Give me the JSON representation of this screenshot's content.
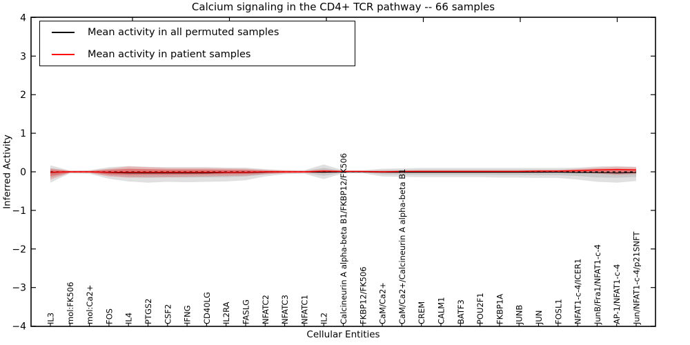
{
  "figure": {
    "title": "Calcium signaling in the CD4+ TCR pathway -- 66 samples",
    "xlabel": "Cellular Entities",
    "ylabel": "Inferred Activity"
  },
  "legend": {
    "entries": [
      {
        "label": "Mean activity in all permuted samples",
        "color": "#000000"
      },
      {
        "label": "Mean activity in patient samples",
        "color": "#ff0000"
      }
    ]
  },
  "chart_data": {
    "type": "line",
    "title": "Calcium signaling in the CD4+ TCR pathway -- 66 samples",
    "xlabel": "Cellular Entities",
    "ylabel": "Inferred Activity",
    "ylim": [
      -4,
      4
    ],
    "yticks": [
      "4",
      "3",
      "2",
      "1",
      "0",
      "−1",
      "−2",
      "−3",
      "−4"
    ],
    "ytick_values": [
      4,
      3,
      2,
      1,
      0,
      -1,
      -2,
      -3,
      -4
    ],
    "grid": false,
    "legend_position": "upper left",
    "categories": [
      "IL3",
      "mol:FK506",
      "mol:Ca2+",
      "FOS",
      "IL4",
      "PTGS2",
      "CSF2",
      "IFNG",
      "CD40LG",
      "IL2RA",
      "FASLG",
      "NFATC2",
      "NFATC3",
      "NFATC1",
      "IL2",
      "Calcineurin A alpha-beta B1/FKBP12/FK506",
      "FKBP12/FK506",
      "CaM/Ca2+",
      "CaM/Ca2+/Calcineurin A alpha-beta B1",
      "CREM",
      "CALM1",
      "BATF3",
      "POU2F1",
      "FKBP1A",
      "JUNB",
      "JUN",
      "FOSL1",
      "NFAT1-c-4/ICER1",
      "JunB/Fra1/NFAT1-c-4",
      "AP-1/NFAT1-c-4",
      "Jun/NFAT1-c-4/p21SNFT"
    ],
    "series": [
      {
        "name": "Mean activity in all permuted samples",
        "color": "#000000",
        "values": [
          -0.02,
          0.0,
          0.0,
          -0.02,
          -0.03,
          -0.03,
          -0.03,
          -0.03,
          -0.03,
          -0.02,
          -0.02,
          -0.01,
          0.0,
          0.0,
          -0.01,
          0.0,
          0.0,
          -0.01,
          -0.01,
          -0.01,
          -0.01,
          -0.01,
          -0.01,
          -0.01,
          -0.01,
          -0.01,
          -0.01,
          -0.02,
          -0.02,
          -0.03,
          -0.02
        ]
      },
      {
        "name": "Mean activity in patient samples",
        "color": "#ff0000",
        "values": [
          -0.01,
          0.0,
          0.0,
          -0.01,
          -0.01,
          -0.01,
          -0.01,
          -0.01,
          -0.01,
          -0.01,
          -0.01,
          0.0,
          0.0,
          0.0,
          0.02,
          0.01,
          0.01,
          0.0,
          0.01,
          0.01,
          0.01,
          0.01,
          0.01,
          0.01,
          0.01,
          0.02,
          0.02,
          0.03,
          0.05,
          0.06,
          0.05
        ]
      }
    ],
    "bands": [
      {
        "name": "permuted-samples-spread",
        "color": "#000000",
        "upper": [
          0.17,
          0.03,
          0.04,
          0.12,
          0.15,
          0.13,
          0.12,
          0.12,
          0.12,
          0.11,
          0.11,
          0.07,
          0.04,
          0.04,
          0.19,
          0.04,
          0.04,
          0.08,
          0.09,
          0.1,
          0.1,
          0.1,
          0.1,
          0.1,
          0.1,
          0.1,
          0.1,
          0.11,
          0.14,
          0.15,
          0.13
        ],
        "lower": [
          -0.28,
          -0.04,
          -0.05,
          -0.18,
          -0.25,
          -0.28,
          -0.26,
          -0.27,
          -0.26,
          -0.25,
          -0.22,
          -0.12,
          -0.06,
          -0.05,
          -0.19,
          -0.04,
          -0.04,
          -0.12,
          -0.13,
          -0.14,
          -0.14,
          -0.14,
          -0.14,
          -0.15,
          -0.15,
          -0.16,
          -0.16,
          -0.2,
          -0.26,
          -0.28,
          -0.24
        ]
      },
      {
        "name": "patient-samples-spread",
        "color": "#ff0000",
        "upper": [
          0.09,
          0.03,
          0.03,
          0.08,
          0.14,
          0.12,
          0.1,
          0.1,
          0.1,
          0.09,
          0.08,
          0.05,
          0.04,
          0.03,
          0.06,
          0.03,
          0.03,
          0.03,
          0.03,
          0.04,
          0.04,
          0.04,
          0.04,
          0.04,
          0.04,
          0.05,
          0.05,
          0.08,
          0.11,
          0.13,
          0.12
        ],
        "lower": [
          -0.2,
          -0.03,
          -0.03,
          -0.12,
          -0.15,
          -0.14,
          -0.14,
          -0.13,
          -0.12,
          -0.11,
          -0.1,
          -0.06,
          -0.04,
          -0.03,
          -0.04,
          -0.02,
          -0.02,
          -0.03,
          -0.03,
          -0.03,
          -0.03,
          -0.03,
          -0.03,
          -0.03,
          -0.03,
          -0.03,
          -0.02,
          -0.02,
          -0.05,
          -0.08,
          -0.06
        ]
      }
    ],
    "zero_line": {
      "y": 0,
      "style": "dashed",
      "color": "#000000"
    }
  }
}
